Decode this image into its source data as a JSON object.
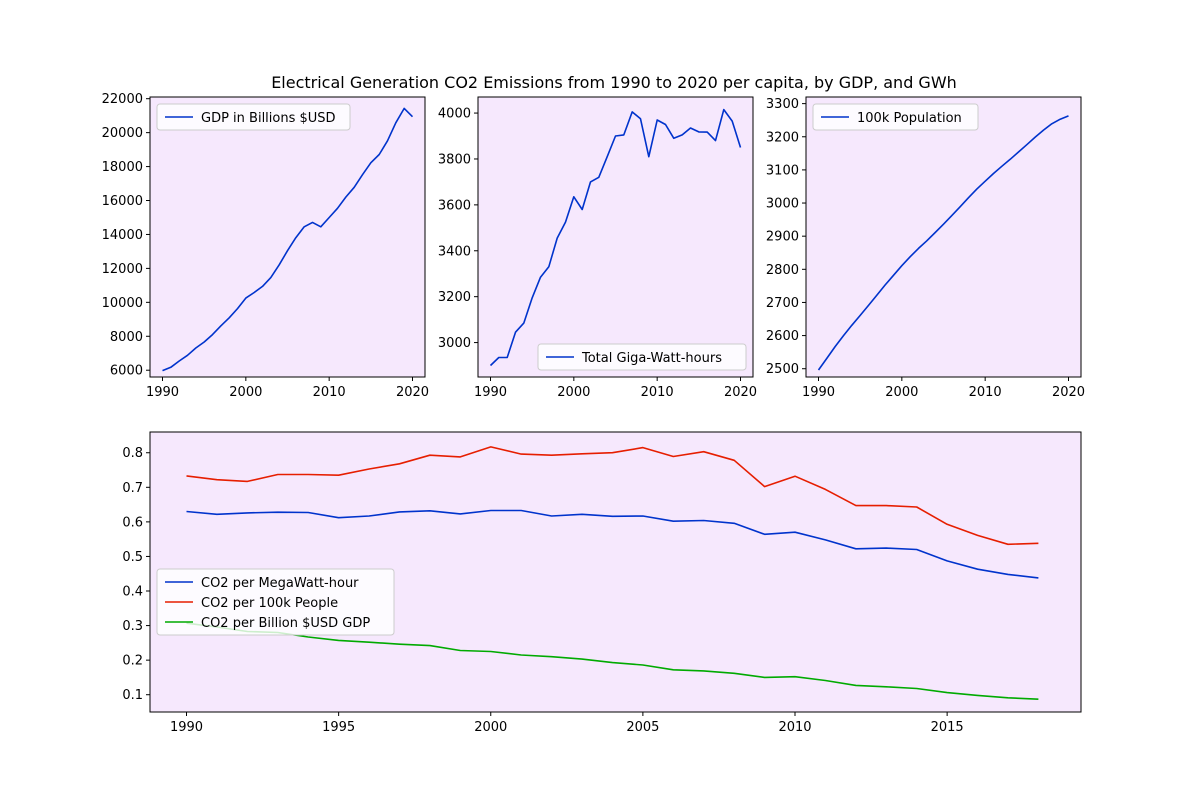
{
  "figure": {
    "title": "Electrical Generation CO2 Emissions from 1990 to 2020 per capita, by GDP, and GWh",
    "background": "#ffffff",
    "axes_facecolor": "#f6e8fd"
  },
  "chart_data": [
    {
      "type": "line",
      "id": "gdp",
      "legend_position": "upper-left",
      "xlim": [
        1988.5,
        2021.5
      ],
      "ylim": [
        5600,
        22100
      ],
      "xticks": [
        1990,
        2000,
        2010,
        2020
      ],
      "yticks": [
        6000,
        8000,
        10000,
        12000,
        14000,
        16000,
        18000,
        20000,
        22000
      ],
      "grid": false,
      "series": [
        {
          "name": "GDP in Billions $USD",
          "color": "#0033cc",
          "x": [
            1990,
            1991,
            1992,
            1993,
            1994,
            1995,
            1996,
            1997,
            1998,
            1999,
            2000,
            2001,
            2002,
            2003,
            2004,
            2005,
            2006,
            2007,
            2008,
            2009,
            2010,
            2011,
            2012,
            2013,
            2014,
            2015,
            2016,
            2017,
            2018,
            2019,
            2020
          ],
          "y": [
            5980,
            6170,
            6540,
            6880,
            7310,
            7660,
            8100,
            8610,
            9090,
            9630,
            10250,
            10580,
            10940,
            11460,
            12210,
            13040,
            13810,
            14450,
            14710,
            14450,
            15000,
            15540,
            16200,
            16780,
            17520,
            18220,
            18710,
            19520,
            20580,
            21430,
            20940
          ]
        }
      ]
    },
    {
      "type": "line",
      "id": "gwh",
      "legend_position": "lower-right",
      "xlim": [
        1988.5,
        2021.5
      ],
      "ylim": [
        2850,
        4070
      ],
      "xticks": [
        1990,
        2000,
        2010,
        2020
      ],
      "yticks": [
        3000,
        3200,
        3400,
        3600,
        3800,
        4000
      ],
      "grid": false,
      "series": [
        {
          "name": "Total Giga-Watt-hours",
          "color": "#0033cc",
          "x": [
            1990,
            1991,
            1992,
            1993,
            1994,
            1995,
            1996,
            1997,
            1998,
            1999,
            2000,
            2001,
            2002,
            2003,
            2004,
            2005,
            2006,
            2007,
            2008,
            2009,
            2010,
            2011,
            2012,
            2013,
            2014,
            2015,
            2016,
            2017,
            2018,
            2019,
            2020
          ],
          "y": [
            2900,
            2935,
            2935,
            3045,
            3085,
            3195,
            3285,
            3330,
            3455,
            3525,
            3635,
            3580,
            3700,
            3720,
            3810,
            3900,
            3905,
            4005,
            3975,
            3810,
            3970,
            3950,
            3890,
            3905,
            3935,
            3918,
            3917,
            3880,
            4015,
            3965,
            3850
          ]
        }
      ]
    },
    {
      "type": "line",
      "id": "population",
      "legend_position": "upper-left",
      "xlim": [
        1988.5,
        2021.5
      ],
      "ylim": [
        2475,
        3320
      ],
      "xticks": [
        1990,
        2000,
        2010,
        2020
      ],
      "yticks": [
        2500,
        2600,
        2700,
        2800,
        2900,
        3000,
        3100,
        3200,
        3300
      ],
      "grid": false,
      "series": [
        {
          "name": "100k Population",
          "color": "#0033cc",
          "x": [
            1990,
            1991,
            1992,
            1993,
            1994,
            1995,
            1996,
            1997,
            1998,
            1999,
            2000,
            2001,
            2002,
            2003,
            2004,
            2005,
            2006,
            2007,
            2008,
            2009,
            2010,
            2011,
            2012,
            2013,
            2014,
            2015,
            2016,
            2017,
            2018,
            2019,
            2020
          ],
          "y": [
            2496,
            2531,
            2567,
            2600,
            2631,
            2661,
            2691,
            2722,
            2753,
            2782,
            2811,
            2838,
            2863,
            2886,
            2911,
            2936,
            2962,
            2989,
            3016,
            3042,
            3066,
            3089,
            3111,
            3132,
            3154,
            3176,
            3199,
            3220,
            3239,
            3253,
            3263
          ]
        }
      ]
    },
    {
      "type": "line",
      "id": "co2",
      "legend_position": "center-left",
      "xlim": [
        1988.8,
        2019.4
      ],
      "ylim": [
        0.05,
        0.86
      ],
      "xticks": [
        1990,
        1995,
        2000,
        2005,
        2010,
        2015
      ],
      "yticks": [
        0.1,
        0.2,
        0.3,
        0.4,
        0.5,
        0.6,
        0.7,
        0.8
      ],
      "grid": false,
      "series": [
        {
          "name": "CO2 per MegaWatt-hour",
          "color": "#0033cc",
          "x": [
            1990,
            1991,
            1992,
            1993,
            1994,
            1995,
            1996,
            1997,
            1998,
            1999,
            2000,
            2001,
            2002,
            2003,
            2004,
            2005,
            2006,
            2007,
            2008,
            2009,
            2010,
            2011,
            2012,
            2013,
            2014,
            2015,
            2016,
            2017,
            2018
          ],
          "y": [
            0.63,
            0.622,
            0.626,
            0.628,
            0.627,
            0.612,
            0.617,
            0.629,
            0.632,
            0.623,
            0.633,
            0.633,
            0.617,
            0.622,
            0.616,
            0.617,
            0.602,
            0.604,
            0.596,
            0.564,
            0.57,
            0.548,
            0.522,
            0.524,
            0.52,
            0.487,
            0.463,
            0.448,
            0.438
          ]
        },
        {
          "name": "CO2 per 100k People",
          "color": "#e61e00",
          "x": [
            1990,
            1991,
            1992,
            1993,
            1994,
            1995,
            1996,
            1997,
            1998,
            1999,
            2000,
            2001,
            2002,
            2003,
            2004,
            2005,
            2006,
            2007,
            2008,
            2009,
            2010,
            2011,
            2012,
            2013,
            2014,
            2015,
            2016,
            2017,
            2018
          ],
          "y": [
            0.733,
            0.722,
            0.717,
            0.737,
            0.737,
            0.735,
            0.753,
            0.768,
            0.793,
            0.788,
            0.817,
            0.796,
            0.793,
            0.797,
            0.8,
            0.815,
            0.789,
            0.803,
            0.778,
            0.702,
            0.732,
            0.694,
            0.647,
            0.647,
            0.643,
            0.593,
            0.561,
            0.535,
            0.538
          ]
        },
        {
          "name": "CO2 per Billion $USD GDP",
          "color": "#00aa00",
          "x": [
            1990,
            1991,
            1992,
            1993,
            1994,
            1995,
            1996,
            1997,
            1998,
            1999,
            2000,
            2001,
            2002,
            2003,
            2004,
            2005,
            2006,
            2007,
            2008,
            2009,
            2010,
            2011,
            2012,
            2013,
            2014,
            2015,
            2016,
            2017,
            2018
          ],
          "y": [
            0.307,
            0.296,
            0.283,
            0.28,
            0.267,
            0.257,
            0.252,
            0.246,
            0.242,
            0.228,
            0.225,
            0.215,
            0.21,
            0.203,
            0.193,
            0.186,
            0.172,
            0.169,
            0.162,
            0.15,
            0.152,
            0.141,
            0.127,
            0.123,
            0.118,
            0.106,
            0.098,
            0.091,
            0.087
          ]
        }
      ]
    }
  ]
}
